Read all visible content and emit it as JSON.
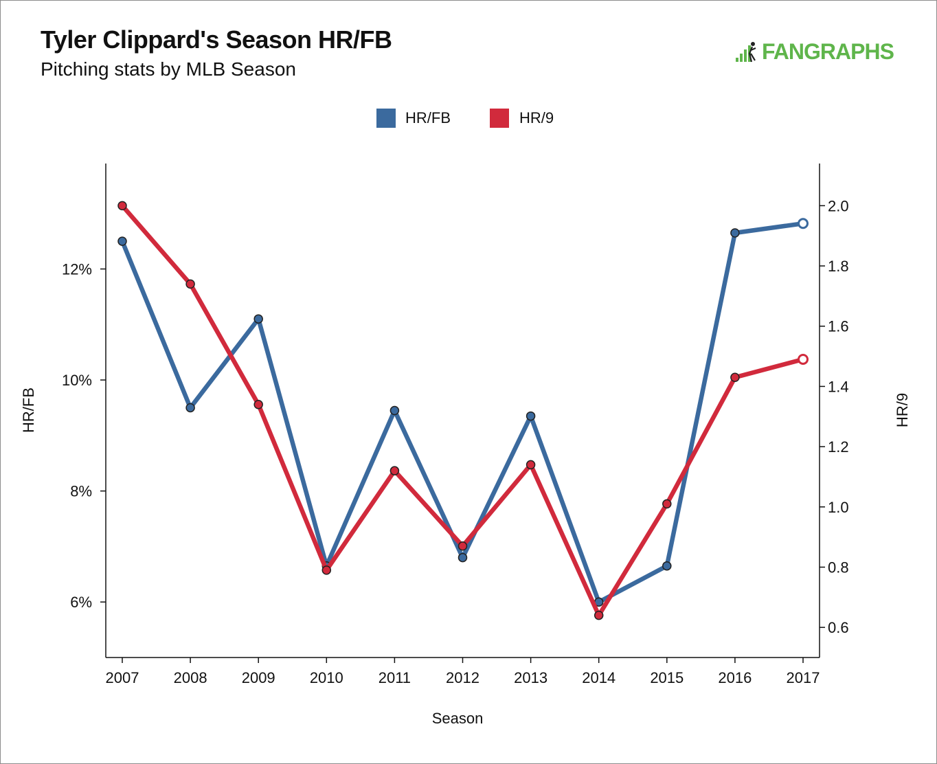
{
  "header": {
    "title": "Tyler Clippard's Season HR/FB",
    "subtitle": "Pitching stats by MLB Season",
    "logo_text": "FANGRAPHS",
    "logo_icon": "fangraphs-batter-icon"
  },
  "colors": {
    "hrfb": "#3b6a9e",
    "hr9": "#d12a3c",
    "logo": "#5fb54b",
    "point_stroke": "#222222"
  },
  "chart_data": {
    "type": "line",
    "x": [
      2007,
      2008,
      2009,
      2010,
      2011,
      2012,
      2013,
      2014,
      2015,
      2016,
      2017
    ],
    "xlabel": "Season",
    "legend": {
      "placement": "top-center"
    },
    "grid": false,
    "y_left": {
      "label": "HR/FB",
      "range": [
        5.0,
        13.9
      ],
      "ticks": [
        6,
        8,
        10,
        12
      ],
      "tick_labels": [
        "6%",
        "8%",
        "10%",
        "12%"
      ]
    },
    "y_right": {
      "label": "HR/9",
      "range": [
        0.5,
        2.14
      ],
      "ticks": [
        0.6,
        0.8,
        1.0,
        1.2,
        1.4,
        1.6,
        1.8,
        2.0
      ],
      "tick_labels": [
        "0.6",
        "0.8",
        "1.0",
        "1.2",
        "1.4",
        "1.6",
        "1.8",
        "2.0"
      ]
    },
    "series": [
      {
        "name": "HR/FB",
        "axis": "left",
        "color": "#3b6a9e",
        "values": [
          12.5,
          9.5,
          11.1,
          6.65,
          9.45,
          6.8,
          9.35,
          6.0,
          6.65,
          12.65,
          12.82
        ],
        "open_last": true
      },
      {
        "name": "HR/9",
        "axis": "right",
        "color": "#d12a3c",
        "values": [
          2.0,
          1.74,
          1.34,
          0.79,
          1.12,
          0.87,
          1.14,
          0.64,
          1.01,
          1.43,
          1.49
        ],
        "open_last": true
      }
    ]
  }
}
